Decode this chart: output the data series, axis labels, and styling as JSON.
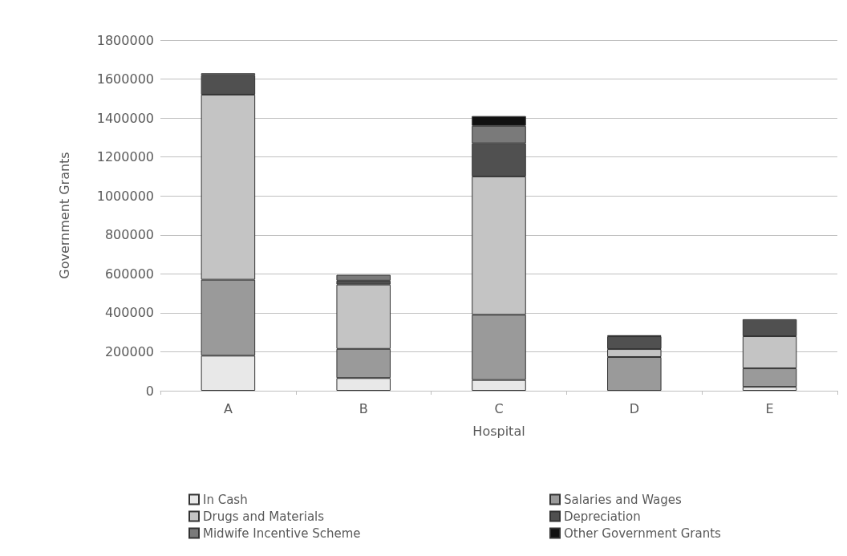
{
  "chart_data": {
    "type": "bar",
    "stacked": true,
    "xlabel": "Hospital",
    "ylabel": "Government Grants",
    "categories": [
      "A",
      "B",
      "C",
      "D",
      "E"
    ],
    "series": [
      {
        "name": "In Cash",
        "color": "#e8e8e8",
        "values": [
          180000,
          65000,
          55000,
          0,
          20000
        ]
      },
      {
        "name": "Salaries and Wages",
        "color": "#9a9a9a",
        "values": [
          390000,
          150000,
          335000,
          173000,
          95000
        ]
      },
      {
        "name": "Drugs and Materials",
        "color": "#c4c4c4",
        "values": [
          950000,
          330000,
          710000,
          41000,
          165000
        ]
      },
      {
        "name": "Depreciation",
        "color": "#505050",
        "values": [
          100000,
          20000,
          170000,
          66000,
          87000
        ]
      },
      {
        "name": "Midwife Incentive Scheme",
        "color": "#7a7a7a",
        "values": [
          10000,
          30000,
          90000,
          5000,
          0
        ]
      },
      {
        "name": "Other Government Grants",
        "color": "#111111",
        "values": [
          0,
          0,
          50000,
          0,
          0
        ]
      }
    ],
    "ylim": [
      0,
      1800000
    ],
    "yticks": [
      0,
      200000,
      400000,
      600000,
      800000,
      1000000,
      1200000,
      1400000,
      1600000,
      1800000
    ],
    "grid": "y",
    "legend": "bottom"
  }
}
